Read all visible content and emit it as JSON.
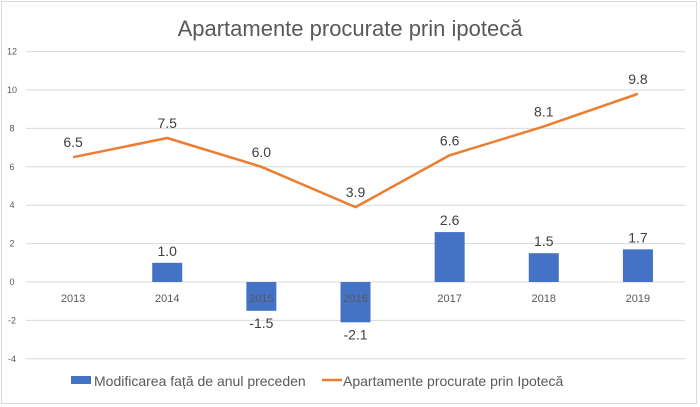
{
  "chart_data": {
    "type": "bar+line",
    "title": "Apartamente procurate prin ipotecă",
    "categories": [
      "2013",
      "2014",
      "2015",
      "2016",
      "2017",
      "2018",
      "2019"
    ],
    "series": [
      {
        "name": "Modificarea față de anul preceden",
        "type": "bar",
        "color": "#4472C4",
        "values": [
          null,
          1.0,
          -1.5,
          -2.1,
          2.6,
          1.5,
          1.7
        ],
        "labels": [
          "",
          "1.0",
          "-1.5",
          "-2.1",
          "2.6",
          "1.5",
          "1.7"
        ]
      },
      {
        "name": "Apartamente procurate prin Ipotecă",
        "type": "line",
        "color": "#ED7D31",
        "values": [
          6.5,
          7.5,
          6.0,
          3.9,
          6.6,
          8.1,
          9.8
        ],
        "labels": [
          "6.5",
          "7.5",
          "6.0",
          "3.9",
          "6.6",
          "8.1",
          "9.8"
        ]
      }
    ],
    "ylim": [
      -4,
      12
    ],
    "yticks": [
      "-4",
      "-2",
      "0",
      "2",
      "4",
      "6",
      "8",
      "10",
      "12"
    ],
    "grid": true,
    "legend": "bottom"
  }
}
